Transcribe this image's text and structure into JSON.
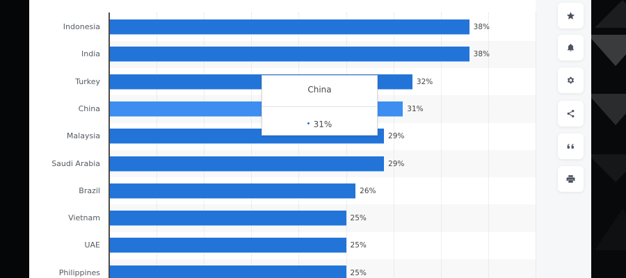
{
  "chart_data": {
    "type": "bar",
    "orientation": "horizontal",
    "title": "",
    "xlabel": "",
    "ylabel": "",
    "categories": [
      "Indonesia",
      "India",
      "Turkey",
      "China",
      "Malaysia",
      "Saudi Arabia",
      "Brazil",
      "Vietnam",
      "UAE",
      "Philippines"
    ],
    "values": [
      38,
      38,
      32,
      31,
      29,
      29,
      26,
      25,
      25,
      25
    ],
    "value_labels": [
      "38%",
      "38%",
      "32%",
      "31%",
      "29%",
      "29%",
      "26%",
      "25%",
      "25%",
      "25%"
    ],
    "unit": "%",
    "xlim": [
      0,
      45
    ],
    "grid": true,
    "legend": "none",
    "bar_color": "#2374d8",
    "highlight_color": "#3d8ef0",
    "highlighted_category": "China"
  },
  "tooltip": {
    "title": "China",
    "value": "31%"
  },
  "toolbar": {
    "buttons": [
      {
        "name": "favorite",
        "icon": "star-icon"
      },
      {
        "name": "notify",
        "icon": "bell-icon"
      },
      {
        "name": "settings",
        "icon": "gear-icon"
      },
      {
        "name": "share",
        "icon": "share-icon"
      },
      {
        "name": "cite",
        "icon": "quote-icon"
      },
      {
        "name": "print",
        "icon": "printer-icon"
      }
    ]
  }
}
